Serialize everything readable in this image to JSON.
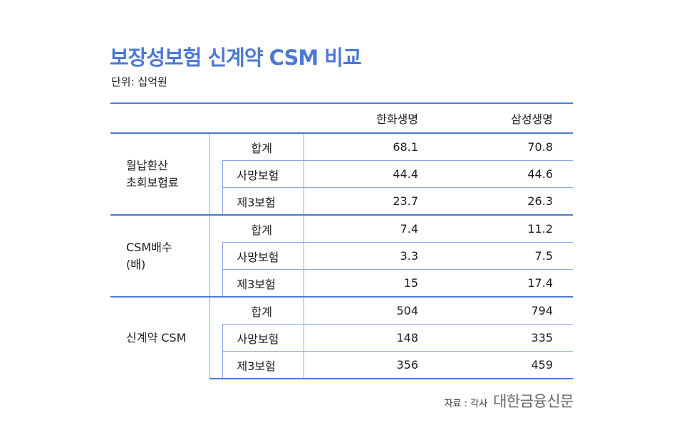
{
  "title": "보장성보험 신계약 CSM 비교",
  "unit": "단위: 십억원",
  "columns": [
    "한화생명",
    "삼성생명"
  ],
  "groups": [
    {
      "label": [
        "월납환산",
        "초회보험료"
      ],
      "rows": [
        {
          "name": "합계",
          "values": [
            "68.1",
            "70.8"
          ]
        },
        {
          "name": "사망보험",
          "values": [
            "44.4",
            "44.6"
          ]
        },
        {
          "name": "제3보험",
          "values": [
            "23.7",
            "26.3"
          ]
        }
      ]
    },
    {
      "label": [
        "CSM배수",
        "(배)"
      ],
      "rows": [
        {
          "name": "합계",
          "values": [
            "7.4",
            "11.2"
          ]
        },
        {
          "name": "사망보험",
          "values": [
            "3.3",
            "7.5"
          ]
        },
        {
          "name": "제3보험",
          "values": [
            "15",
            "17.4"
          ]
        }
      ]
    },
    {
      "label": [
        "신계약 CSM"
      ],
      "rows": [
        {
          "name": "합계",
          "values": [
            "504",
            "794"
          ]
        },
        {
          "name": "사망보험",
          "values": [
            "148",
            "335"
          ]
        },
        {
          "name": "제3보험",
          "values": [
            "356",
            "459"
          ]
        }
      ]
    }
  ],
  "source": {
    "label": "자료 : 각사",
    "logo": "대한금융신문"
  }
}
